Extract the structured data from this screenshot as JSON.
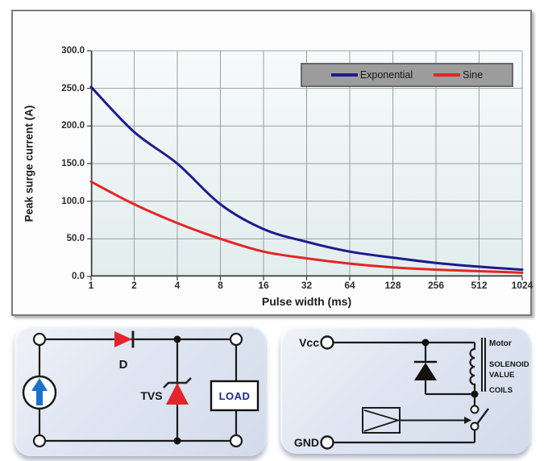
{
  "chart_data": {
    "type": "line",
    "title": "",
    "xlabel": "Pulse width (ms)",
    "ylabel": "Peak surge current (A)",
    "x_scale": "log2",
    "categories": [
      "1",
      "2",
      "4",
      "8",
      "16",
      "32",
      "64",
      "128",
      "256",
      "512",
      "1024"
    ],
    "y_ticks": [
      0,
      50,
      100,
      150,
      200,
      250,
      300
    ],
    "y_tick_labels": [
      "0.0",
      "50.0",
      "100.0",
      "150.0",
      "200.0",
      "250.0",
      "300.0"
    ],
    "ylim": [
      0,
      300
    ],
    "grid": true,
    "legend_position": "top-right-inside",
    "series": [
      {
        "name": "Exponential",
        "color": "#1b1b8e",
        "values": [
          252,
          192,
          150,
          96,
          63,
          46,
          33,
          25,
          18,
          13,
          9
        ]
      },
      {
        "name": "Sine",
        "color": "#e62424",
        "values": [
          126,
          96,
          71,
          50,
          33,
          24,
          17,
          12,
          9,
          7,
          5
        ]
      }
    ]
  },
  "circuits": {
    "left": {
      "diode_label": "D",
      "tvs_label": "TVS",
      "load_label": "LOAD"
    },
    "right": {
      "vcc_label": "Vcc",
      "gnd_label": "GND",
      "coil_labels": [
        "Motor",
        "SOLENOID",
        "VALUE",
        "COILS"
      ]
    }
  },
  "colors": {
    "curve_exponential": "#1b1b8e",
    "curve_sine": "#e62424",
    "grid_line": "#98a2a3",
    "axis_line": "#3a3a3a",
    "legend_bg": "#9c9c9c",
    "red_component": "#e5242b",
    "source_arrow_blue": "#1e70c8",
    "load_text_navy": "#1c2b7e",
    "panel_bg": "#dde3f0"
  }
}
